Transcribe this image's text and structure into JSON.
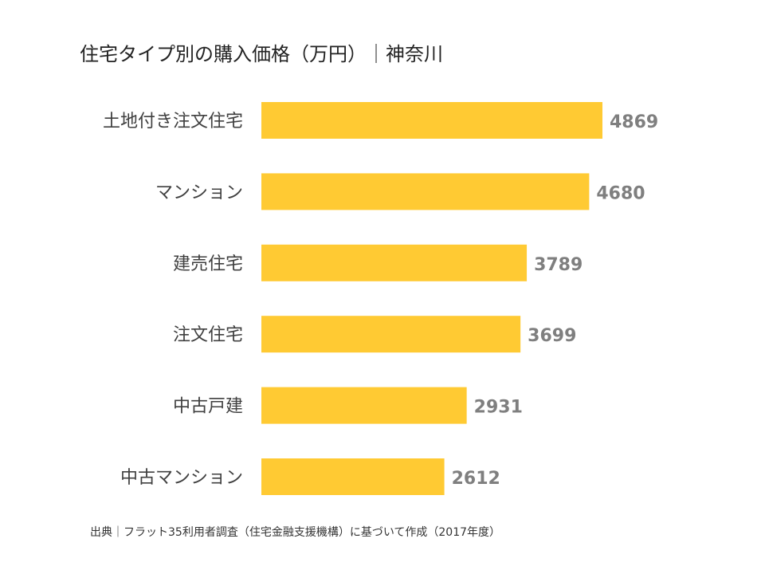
{
  "chart_data": {
    "type": "bar",
    "orientation": "horizontal",
    "title": "住宅タイプ別の購入価格（万円）｜神奈川",
    "categories": [
      "土地付き注文住宅",
      "マンション",
      "建売住宅",
      "注文住宅",
      "中古戸建",
      "中古マンション"
    ],
    "values": [
      4869,
      4680,
      3789,
      3699,
      2931,
      2612
    ],
    "xlim": [
      0,
      4869
    ],
    "grid": false,
    "bar_color": "#FFCA33",
    "label_color": "#7F7F7F",
    "source": "出典｜フラット35利用者調査（住宅金融支援機構）に基づいて作成（2017年度）"
  }
}
